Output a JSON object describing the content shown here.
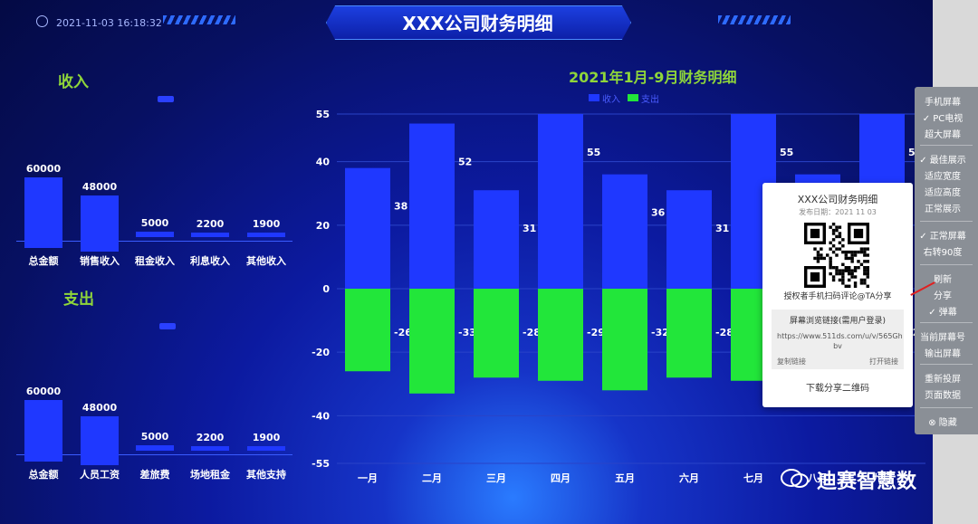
{
  "header": {
    "datetime": "2021-11-03 16:18:32",
    "title": "XXX公司财务明细"
  },
  "income": {
    "title": "收入",
    "categories": [
      "总金额",
      "销售收入",
      "租金收入",
      "利息收入",
      "其他收入"
    ],
    "values": [
      60000,
      48000,
      5000,
      2200,
      1900
    ],
    "value_labels": [
      "60000",
      "48000",
      "5000",
      "2200",
      "1900"
    ]
  },
  "expense": {
    "title": "支出",
    "categories": [
      "总金额",
      "人员工资",
      "差旅费",
      "场地租金",
      "其他支持"
    ],
    "values": [
      60000,
      48000,
      5000,
      2200,
      1900
    ],
    "value_labels": [
      "60000",
      "48000",
      "5000",
      "2200",
      "1900"
    ]
  },
  "chart_data": {
    "type": "bar",
    "title": "2021年1月-9月财务明细",
    "categories": [
      "一月",
      "二月",
      "三月",
      "四月",
      "五月",
      "六月",
      "七月",
      "八月",
      "九月"
    ],
    "series": [
      {
        "name": "收入",
        "values": [
          38,
          52,
          31,
          55,
          36,
          31,
          55,
          36,
          55
        ],
        "color": "#1f38ff"
      },
      {
        "name": "支出",
        "values": [
          -26,
          -33,
          -28,
          -29,
          -32,
          -28,
          -29,
          -32,
          -29
        ],
        "color": "#22e63a"
      }
    ],
    "ylim": [
      -55,
      55
    ],
    "yticks": [
      55,
      40,
      20,
      0,
      -20,
      -40,
      -55
    ],
    "legend_position": "top"
  },
  "share_popup": {
    "title": "XXX公司财务明细",
    "date": "发布日期：2021 11 03",
    "caption": "授权者手机扫码评论@TA分享",
    "link_header": "屏幕浏览链接(需用户登录)",
    "link_url": "https://www.511ds.com/u/v/565Gh bv",
    "copy_label": "复制链接",
    "open_label": "打开链接",
    "download_label": "下载分享二维码"
  },
  "menu": {
    "items": [
      "手机屏幕",
      "✓ PC电视",
      "超大屏幕",
      "✓ 最佳展示",
      "适应宽度",
      "适应高度",
      "正常展示",
      "✓ 正常屏幕",
      "右转90度",
      "刷新",
      "分享",
      "✓ 弹幕",
      "当前屏幕号",
      "输出屏幕",
      "重新投屏",
      "页面数据",
      "⊗ 隐藏"
    ]
  },
  "watermark": "迪赛智慧数",
  "colors": {
    "income": "#1f38ff",
    "expense": "#22e63a",
    "accent_title": "#8fd63a"
  }
}
